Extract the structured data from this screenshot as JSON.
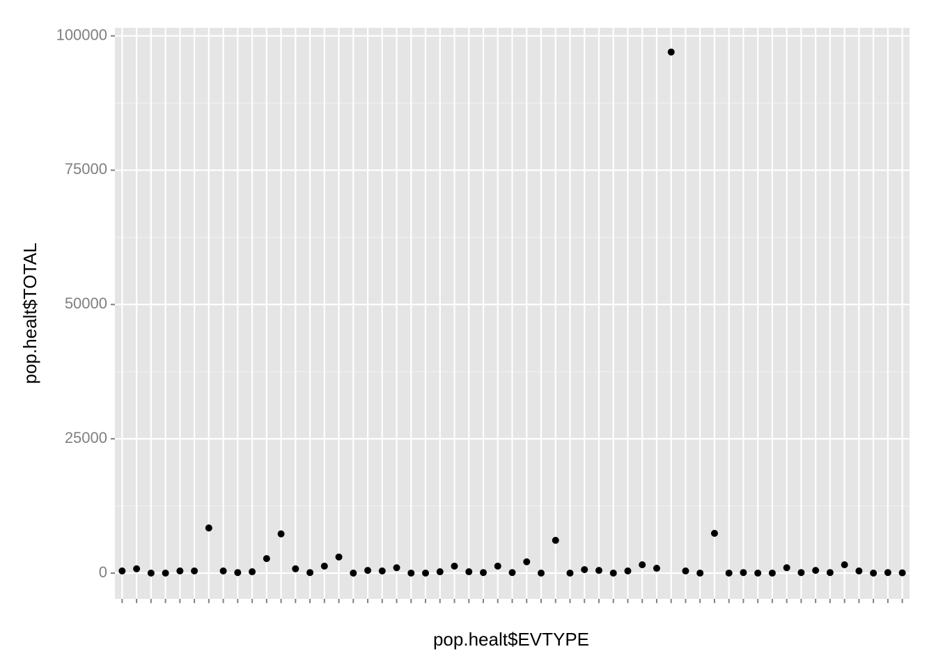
{
  "chart_data": {
    "type": "scatter",
    "xlabel": "pop.healt$EVTYPE",
    "ylabel": "pop.healt$TOTAL",
    "categories": [
      null,
      null,
      null,
      null,
      null,
      null,
      null,
      null,
      null,
      null,
      null,
      null,
      null,
      null,
      null,
      null,
      null,
      null,
      null,
      null,
      null,
      null,
      null,
      null,
      null,
      null,
      null,
      null,
      null,
      null,
      null,
      null,
      null,
      null,
      null,
      null,
      null,
      null,
      null,
      null,
      null,
      null,
      null,
      null,
      null,
      null,
      null,
      null,
      null,
      null,
      null,
      null,
      null,
      null,
      null
    ],
    "values": [
      400,
      800,
      0,
      0,
      400,
      400,
      8400,
      400,
      100,
      250,
      2700,
      7300,
      800,
      100,
      1300,
      3000,
      0,
      500,
      400,
      1000,
      0,
      0,
      250,
      1300,
      250,
      100,
      1300,
      100,
      2100,
      0,
      6100,
      0,
      650,
      500,
      0,
      400,
      1550,
      900,
      97000,
      400,
      0,
      7400,
      0,
      100,
      0,
      0,
      1000,
      100,
      500,
      100,
      1550,
      400,
      0,
      100,
      50
    ],
    "color": "#000000",
    "ylim": [
      -4800,
      101500
    ],
    "yticks": [
      0,
      25000,
      50000,
      75000,
      100000
    ],
    "grid": true
  }
}
